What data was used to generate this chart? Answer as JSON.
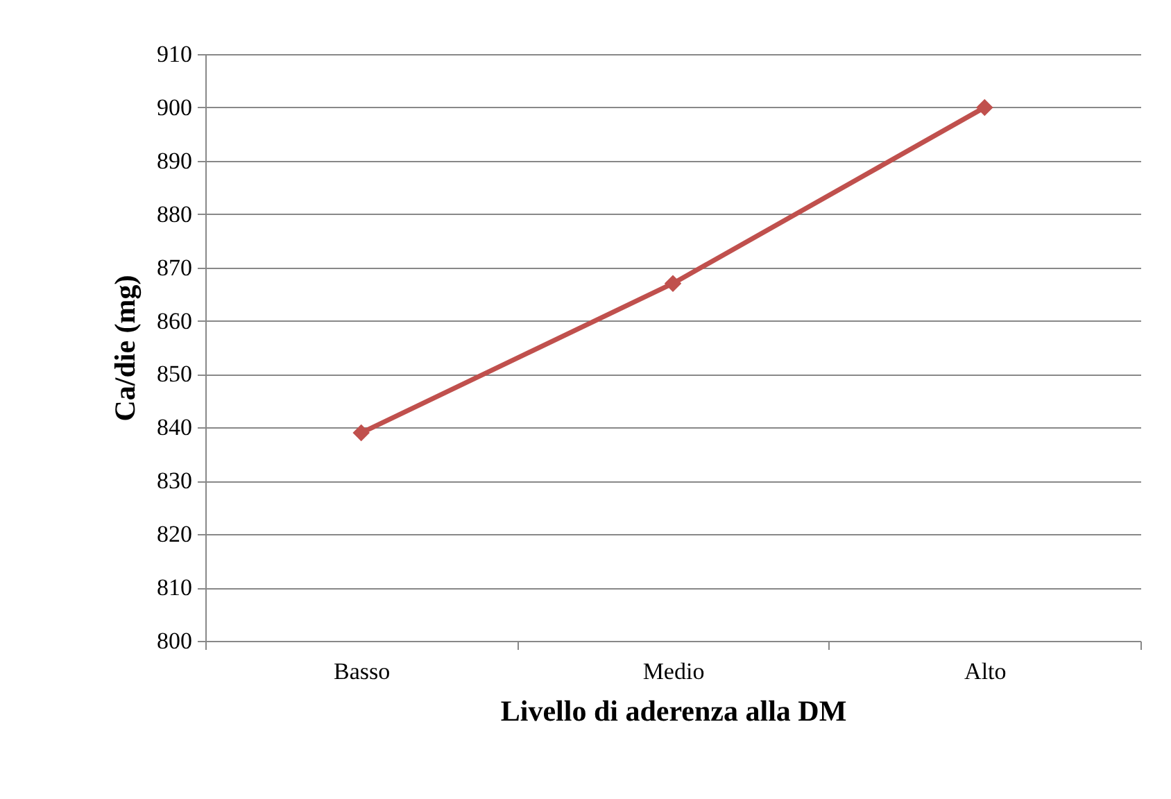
{
  "chart_data": {
    "type": "line",
    "xlabel": "Livello di aderenza alla DM",
    "ylabel": "Ca/die (mg)",
    "categories": [
      "Basso",
      "Medio",
      "Alto"
    ],
    "series": [
      {
        "color": "#c0504d",
        "values": [
          839,
          867,
          900
        ]
      }
    ],
    "ylim": [
      800,
      910
    ],
    "yticks": [
      800,
      810,
      820,
      830,
      840,
      850,
      860,
      870,
      880,
      890,
      900,
      910
    ],
    "grid": "y",
    "marker": "diamond",
    "line_style": "solid",
    "legend": false
  }
}
